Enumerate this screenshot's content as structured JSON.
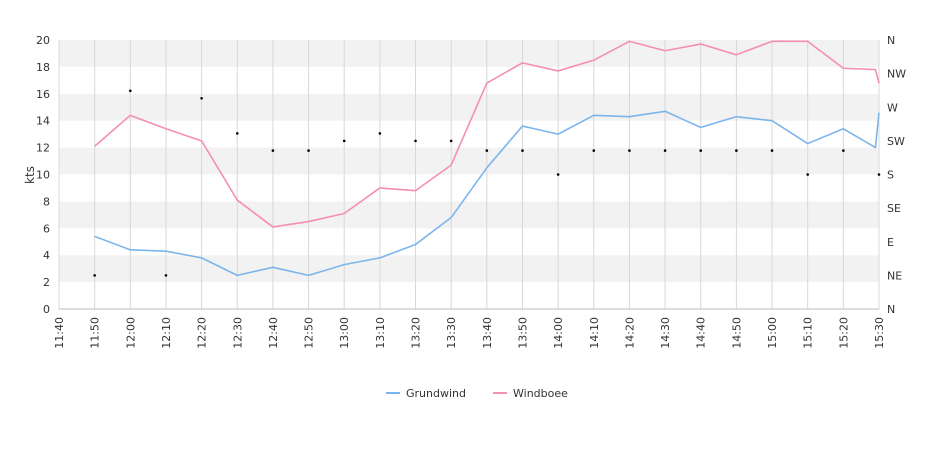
{
  "chart_data": {
    "type": "line",
    "ylabel": "kts",
    "ylim": [
      0,
      20
    ],
    "y_ticks": [
      0,
      2,
      4,
      6,
      8,
      10,
      12,
      14,
      16,
      18,
      20
    ],
    "x_ticks": [
      "11:40",
      "11:50",
      "12:00",
      "12:10",
      "12:20",
      "12:30",
      "12:40",
      "12:50",
      "13:00",
      "13:10",
      "13:20",
      "13:30",
      "13:40",
      "13:50",
      "14:00",
      "14:10",
      "14:20",
      "14:30",
      "14:40",
      "14:50",
      "15:00",
      "15:10",
      "15:20",
      "15:30"
    ],
    "right_axis_labels": [
      "N",
      "NE",
      "E",
      "SE",
      "S",
      "SW",
      "W",
      "NW",
      "N"
    ],
    "series": [
      {
        "name": "Grundwind",
        "color": "#7cb5ec",
        "points": [
          [
            "11:50",
            5.4
          ],
          [
            "12:00",
            4.4
          ],
          [
            "12:10",
            4.3
          ],
          [
            "12:20",
            3.8
          ],
          [
            "12:30",
            2.5
          ],
          [
            "12:40",
            3.1
          ],
          [
            "12:50",
            2.5
          ],
          [
            "13:00",
            3.3
          ],
          [
            "13:10",
            3.8
          ],
          [
            "13:20",
            4.8
          ],
          [
            "13:30",
            6.8
          ],
          [
            "13:40",
            10.5
          ],
          [
            "13:50",
            13.6
          ],
          [
            "14:00",
            13.0
          ],
          [
            "14:10",
            14.4
          ],
          [
            "14:20",
            14.3
          ],
          [
            "14:30",
            14.7
          ],
          [
            "14:40",
            13.5
          ],
          [
            "14:50",
            14.3
          ],
          [
            "15:00",
            14.0
          ],
          [
            "15:10",
            12.3
          ],
          [
            "15:20",
            13.4
          ],
          [
            "15:29",
            12.0
          ],
          [
            "15:30",
            14.6
          ]
        ]
      },
      {
        "name": "Windboee",
        "color": "#f48fb1",
        "points": [
          [
            "11:50",
            12.1
          ],
          [
            "12:00",
            14.4
          ],
          [
            "12:10",
            13.4
          ],
          [
            "12:20",
            12.5
          ],
          [
            "12:30",
            8.1
          ],
          [
            "12:40",
            6.1
          ],
          [
            "12:50",
            6.5
          ],
          [
            "13:00",
            7.1
          ],
          [
            "13:10",
            9.0
          ],
          [
            "13:20",
            8.8
          ],
          [
            "13:30",
            10.7
          ],
          [
            "13:40",
            16.8
          ],
          [
            "13:50",
            18.3
          ],
          [
            "14:00",
            17.7
          ],
          [
            "14:10",
            18.5
          ],
          [
            "14:20",
            19.9
          ],
          [
            "14:30",
            19.2
          ],
          [
            "14:40",
            19.7
          ],
          [
            "14:50",
            18.9
          ],
          [
            "15:00",
            19.9
          ],
          [
            "15:10",
            19.9
          ],
          [
            "15:20",
            17.9
          ],
          [
            "15:29",
            17.8
          ],
          [
            "15:30",
            16.8
          ]
        ]
      }
    ],
    "direction_points": [
      [
        "11:50",
        "NE"
      ],
      [
        "12:00",
        292
      ],
      [
        "12:10",
        "NE"
      ],
      [
        "12:20",
        282
      ],
      [
        "12:30",
        235
      ],
      [
        "12:40",
        212
      ],
      [
        "12:50",
        212
      ],
      [
        "13:00",
        225
      ],
      [
        "13:10",
        235
      ],
      [
        "13:20",
        225
      ],
      [
        "13:30",
        225
      ],
      [
        "13:40",
        212
      ],
      [
        "13:50",
        212
      ],
      [
        "14:00",
        "S"
      ],
      [
        "14:10",
        212
      ],
      [
        "14:20",
        212
      ],
      [
        "14:30",
        212
      ],
      [
        "14:40",
        212
      ],
      [
        "14:50",
        212
      ],
      [
        "15:00",
        212
      ],
      [
        "15:10",
        "S"
      ],
      [
        "15:20",
        212
      ],
      [
        "15:30",
        "S"
      ]
    ]
  }
}
